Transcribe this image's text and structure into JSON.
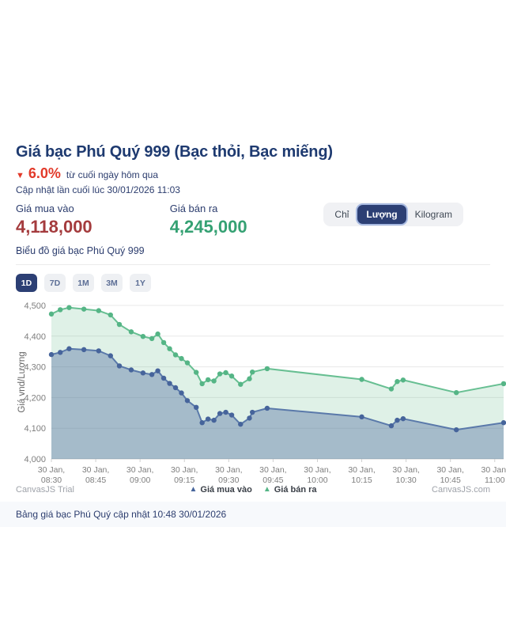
{
  "header": {
    "title": "Giá bạc Phú Quý 999 (Bạc thỏi, Bạc miếng)",
    "change_arrow": "▼",
    "change_percent": "6.0%",
    "change_note": "từ cuối ngày hôm qua",
    "last_updated": "Cập nhật lần cuối lúc 30/01/2026 11:03"
  },
  "prices": {
    "buy_label": "Giá mua vào",
    "buy_value": "4,118,000",
    "sell_label": "Giá bán ra",
    "sell_value": "4,245,000"
  },
  "unit_tabs": [
    {
      "label": "Chỉ",
      "active": false
    },
    {
      "label": "Lượng",
      "active": true
    },
    {
      "label": "Kilogram",
      "active": false
    }
  ],
  "chart_section": {
    "title": "Biểu đồ giá bạc Phú Quý 999",
    "range_tabs": [
      {
        "label": "1D",
        "active": true
      },
      {
        "label": "7D",
        "active": false
      },
      {
        "label": "1M",
        "active": false
      },
      {
        "label": "3M",
        "active": false
      },
      {
        "label": "1Y",
        "active": false
      }
    ]
  },
  "chart_data": {
    "type": "area",
    "ylabel": "Giá vnd/Lượng",
    "ylim": [
      4000,
      4500
    ],
    "ytick_step": 100,
    "grid": true,
    "legend_position": "bottom",
    "x_range_minutes": [
      0,
      153
    ],
    "x_tick_interval_minutes": 15,
    "x_ticks": [
      {
        "date": "30 Jan,",
        "time": "08:30"
      },
      {
        "date": "30 Jan,",
        "time": "08:45"
      },
      {
        "date": "30 Jan,",
        "time": "09:00"
      },
      {
        "date": "30 Jan,",
        "time": "09:15"
      },
      {
        "date": "30 Jan,",
        "time": "09:30"
      },
      {
        "date": "30 Jan,",
        "time": "09:45"
      },
      {
        "date": "30 Jan,",
        "time": "10:00"
      },
      {
        "date": "30 Jan,",
        "time": "10:15"
      },
      {
        "date": "30 Jan,",
        "time": "10:30"
      },
      {
        "date": "30 Jan,",
        "time": "10:45"
      },
      {
        "date": "30 Jan,",
        "time": "11:00"
      }
    ],
    "x_minutes": [
      0,
      3,
      6,
      11,
      16,
      20,
      23,
      27,
      31,
      34,
      36,
      38,
      40,
      42,
      44,
      46,
      49,
      51,
      53,
      55,
      57,
      59,
      61,
      64,
      67,
      68,
      73,
      105,
      115,
      117,
      119,
      137,
      153
    ],
    "series": [
      {
        "name": "Giá mua vào",
        "color": "#5a79aa",
        "marker_color": "#46649b",
        "fill": "rgba(70,100,155,0.38)",
        "values": [
          4340,
          4347,
          4359,
          4356,
          4352,
          4336,
          4303,
          4290,
          4280,
          4275,
          4287,
          4263,
          4246,
          4232,
          4215,
          4190,
          4168,
          4118,
          4130,
          4126,
          4148,
          4152,
          4143,
          4113,
          4133,
          4152,
          4165,
          4137,
          4108,
          4126,
          4131,
          4095,
          4118
        ]
      },
      {
        "name": "Giá bán ra",
        "color": "#67bf92",
        "marker_color": "#55b586",
        "fill": "rgba(108,190,145,0.22)",
        "values": [
          4472,
          4486,
          4493,
          4488,
          4483,
          4469,
          4438,
          4414,
          4399,
          4392,
          4407,
          4379,
          4359,
          4339,
          4327,
          4313,
          4282,
          4245,
          4258,
          4254,
          4277,
          4281,
          4270,
          4243,
          4261,
          4283,
          4294,
          4259,
          4228,
          4252,
          4257,
          4216,
          4245
        ]
      }
    ]
  },
  "footer": {
    "trial_label": "CanvasJS Trial",
    "credit_label": "CanvasJS.com",
    "legend": [
      {
        "label": "Giá mua vào",
        "color": "#46649b"
      },
      {
        "label": "Giá bán ra",
        "color": "#55b586"
      }
    ]
  },
  "bottom_bar": {
    "text": "Bảng giá bạc Phú Quý cập nhật 10:48 30/01/2026"
  },
  "colors": {
    "title_navy": "#1e3a70",
    "accent_navy": "#2c3f74",
    "change_red": "#e23a2a",
    "buy_red": "#a43b3d",
    "sell_green": "#35a173",
    "axis_text": "#7e7e7e"
  }
}
